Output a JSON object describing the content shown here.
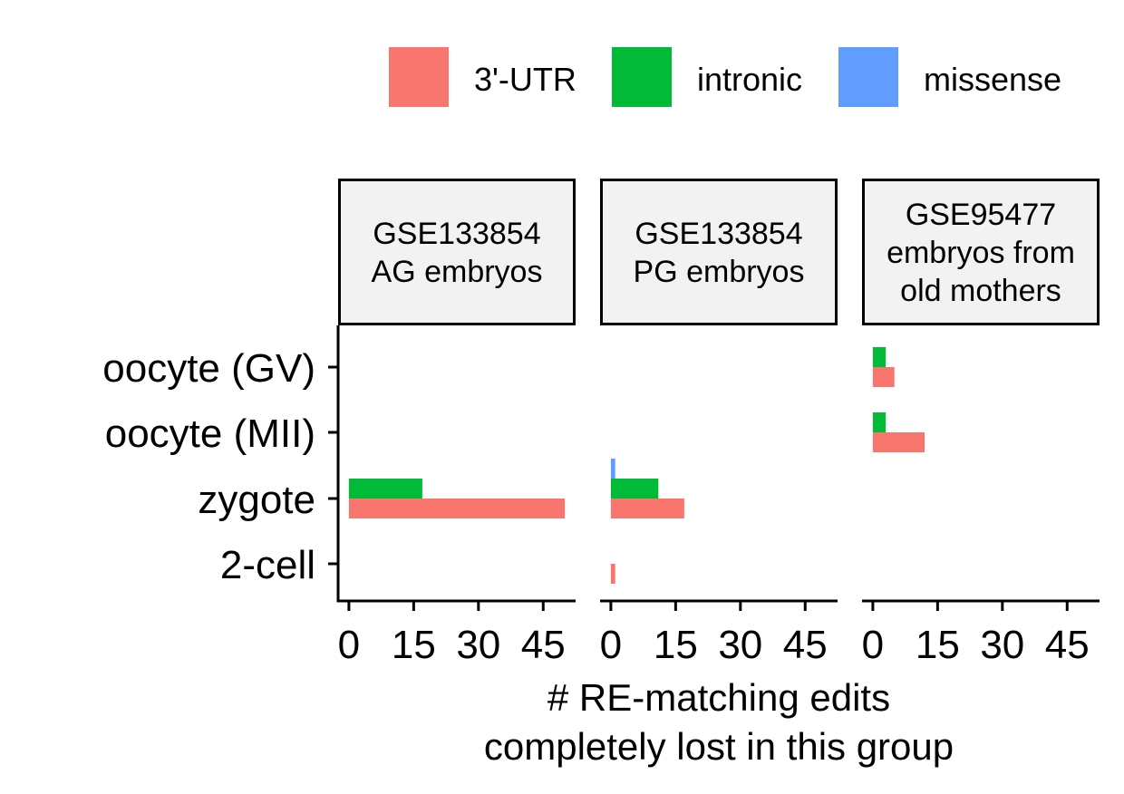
{
  "chart_data": {
    "type": "bar",
    "orientation": "horizontal",
    "layout": "faceted",
    "categories": [
      "oocyte (GV)",
      "oocyte (MII)",
      "zygote",
      "2-cell"
    ],
    "legend": {
      "position": "top",
      "entries": [
        {
          "label": "3'-UTR",
          "color": "#F8766D"
        },
        {
          "label": "intronic",
          "color": "#00BA38"
        },
        {
          "label": "missense",
          "color": "#619CFF"
        }
      ]
    },
    "facets": [
      {
        "title_lines": [
          "GSE133854",
          "AG embryos"
        ],
        "series": [
          {
            "name": "3'-UTR",
            "values": [
              0,
              0,
              50,
              0
            ]
          },
          {
            "name": "intronic",
            "values": [
              0,
              0,
              17,
              0
            ]
          },
          {
            "name": "missense",
            "values": [
              0,
              0,
              0,
              0
            ]
          }
        ]
      },
      {
        "title_lines": [
          "GSE133854",
          "PG embryos"
        ],
        "series": [
          {
            "name": "3'-UTR",
            "values": [
              0,
              0,
              17,
              1
            ]
          },
          {
            "name": "intronic",
            "values": [
              0,
              0,
              11,
              0
            ]
          },
          {
            "name": "missense",
            "values": [
              0,
              0,
              1,
              0
            ]
          }
        ]
      },
      {
        "title_lines": [
          "GSE95477",
          "embryos from",
          "old mothers"
        ],
        "series": [
          {
            "name": "3'-UTR",
            "values": [
              5,
              12,
              0,
              0
            ]
          },
          {
            "name": "intronic",
            "values": [
              3,
              3,
              0,
              0
            ]
          },
          {
            "name": "missense",
            "values": [
              0,
              0,
              0,
              0
            ]
          }
        ]
      }
    ],
    "x_ticks": [
      "0",
      "15",
      "30",
      "45"
    ],
    "xlim": [
      -2.5,
      52.5
    ],
    "xlabel_lines": [
      "# RE-matching edits",
      "completely lost in this group"
    ],
    "ylabel": "",
    "grid": false
  }
}
